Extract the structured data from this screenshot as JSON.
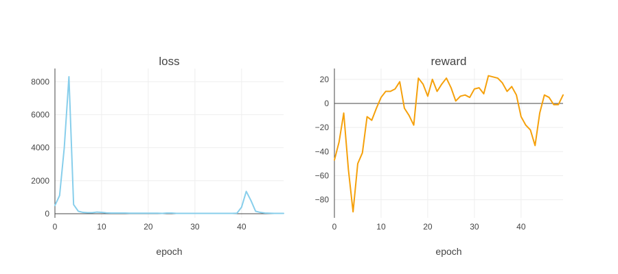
{
  "chart_data": [
    {
      "type": "line",
      "title": "loss",
      "xlabel": "epoch",
      "ylabel": "",
      "xlim": [
        0,
        49
      ],
      "ylim": [
        -250,
        8800
      ],
      "xticks": [
        0,
        10,
        20,
        30,
        40
      ],
      "yticks": [
        0,
        2000,
        4000,
        6000,
        8000
      ],
      "color": "#87ceeb",
      "series": [
        {
          "name": "",
          "x": [
            0,
            1,
            2,
            3,
            4,
            5,
            6,
            7,
            8,
            9,
            10,
            11,
            12,
            13,
            14,
            15,
            16,
            17,
            18,
            19,
            20,
            21,
            22,
            23,
            24,
            25,
            26,
            27,
            28,
            29,
            30,
            31,
            32,
            33,
            34,
            35,
            36,
            37,
            38,
            39,
            40,
            41,
            42,
            43,
            44,
            45,
            46,
            47,
            48,
            49
          ],
          "values": [
            500,
            1100,
            4000,
            8300,
            550,
            150,
            80,
            60,
            60,
            100,
            80,
            50,
            40,
            40,
            40,
            40,
            30,
            30,
            30,
            30,
            30,
            30,
            30,
            20,
            40,
            40,
            20,
            20,
            20,
            20,
            20,
            20,
            20,
            20,
            20,
            20,
            20,
            20,
            20,
            30,
            400,
            1350,
            800,
            150,
            80,
            40,
            30,
            20,
            20,
            20
          ]
        }
      ]
    },
    {
      "type": "line",
      "title": "reward",
      "xlabel": "epoch",
      "ylabel": "",
      "xlim": [
        0,
        49
      ],
      "ylim": [
        -95,
        29
      ],
      "xticks": [
        0,
        10,
        20,
        30,
        40
      ],
      "yticks": [
        -80,
        -60,
        -40,
        -20,
        0,
        20
      ],
      "color": "#f5a00a",
      "series": [
        {
          "name": "",
          "x": [
            0,
            1,
            2,
            3,
            4,
            5,
            6,
            7,
            8,
            9,
            10,
            11,
            12,
            13,
            14,
            15,
            16,
            17,
            18,
            19,
            20,
            21,
            22,
            23,
            24,
            25,
            26,
            27,
            28,
            29,
            30,
            31,
            32,
            33,
            34,
            35,
            36,
            37,
            38,
            39,
            40,
            41,
            42,
            43,
            44,
            45,
            46,
            47,
            48,
            49
          ],
          "values": [
            -47,
            -32,
            -8,
            -55,
            -90,
            -50,
            -41,
            -11,
            -14,
            -4,
            5,
            10,
            10,
            12,
            18,
            -4,
            -10,
            -18,
            21,
            16,
            6,
            20,
            10,
            16,
            21,
            13,
            2,
            6,
            7,
            5,
            12,
            13,
            8,
            23,
            22,
            21,
            17,
            10,
            14,
            7,
            -11,
            -18,
            -22,
            -35,
            -8,
            7,
            5,
            -1,
            -1,
            7
          ]
        }
      ]
    }
  ]
}
